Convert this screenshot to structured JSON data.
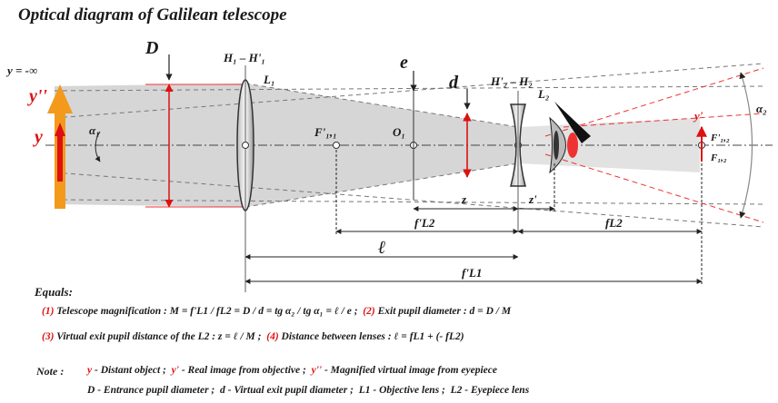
{
  "title": "Optical diagram of Galilean telescope",
  "labels": {
    "y_inf": "y = -∞",
    "y_obj": "y",
    "y_dbl": "y''",
    "alpha1": "α₁",
    "alpha2": "α₂",
    "D": "D",
    "H1": "H₁ – H'₁",
    "L1": "L₁",
    "e": "e",
    "d": "d",
    "H2": "H'₂ – H₂",
    "L2": "L₂",
    "F1": "F'₁,₁",
    "O1": "O₁",
    "F12": "F'₁,₂",
    "F22": "F₁,₂",
    "y_prime": "y'",
    "z": "z",
    "z_prime": "z'",
    "f_L2_prime": "f'L2",
    "f_L2": "fL2",
    "ell": "ℓ",
    "f_L1_prime": "f'L1"
  },
  "equals": {
    "heading": "Equals:",
    "eq1_num": "(1)",
    "eq1_text": "Telescope magnification : M = f'L1 / fL2 = D / d = tg α₂ / tg α₁ = ℓ / e ;",
    "eq2_num": "(2)",
    "eq2_text": "Exit pupil diameter : d = D / M",
    "eq3_num": "(3)",
    "eq3_text": "Virtual exit pupil distance of the L2 : z = ℓ / M ;",
    "eq4_num": "(4)",
    "eq4_text": "Distance between lenses : ℓ = fL1 + (- fL2)"
  },
  "note": {
    "heading": "Note :",
    "row1": [
      {
        "sym": "y",
        "text": "- Distant object ;"
      },
      {
        "sym": "y'",
        "text": "- Real image from objective ;"
      },
      {
        "sym": "y''",
        "text": "- Magnified virtual image from eyepiece"
      }
    ],
    "row2": [
      {
        "sym": "D",
        "text": "- Entrance pupil diameter ;"
      },
      {
        "sym": "d",
        "text": "- Virtual exit pupil diameter ;"
      },
      {
        "sym": "L1",
        "text": "- Objective lens ;"
      },
      {
        "sym": "L2",
        "text": "- Eyepiece lens"
      }
    ]
  },
  "colors": {
    "red": "#dd1111",
    "orange": "#f39a1c",
    "gray_beam": "#bdbdbd"
  }
}
